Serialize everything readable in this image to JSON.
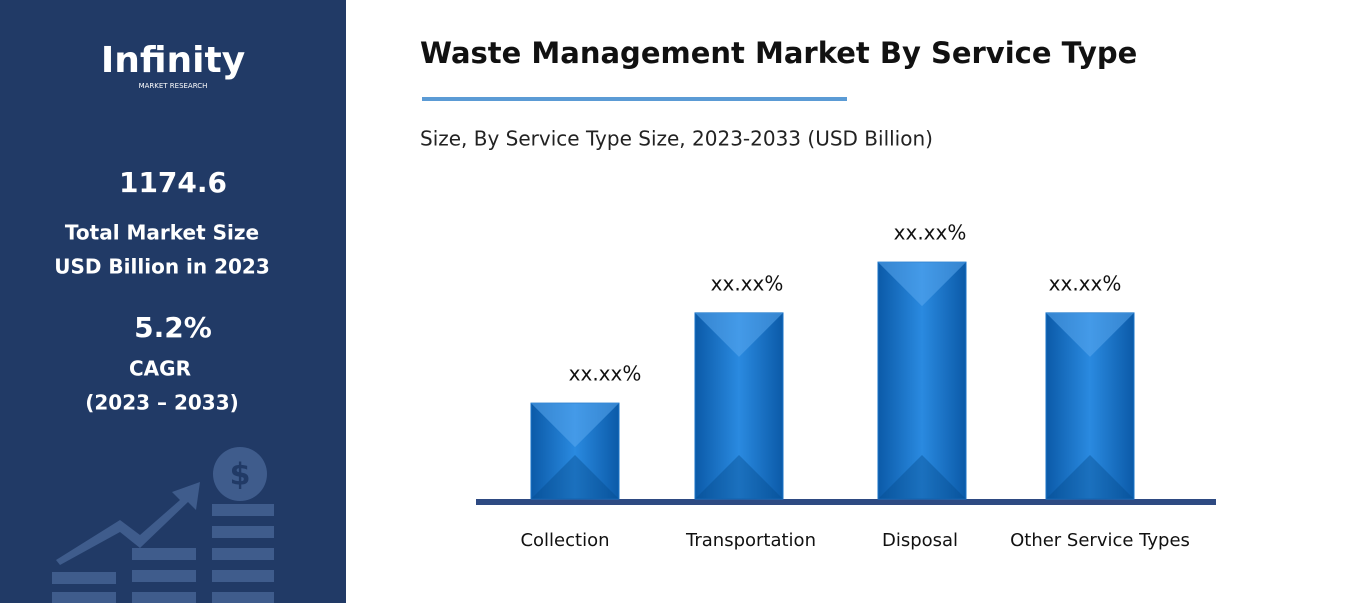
{
  "sidebar": {
    "logo": "Infinity",
    "logo_sub": "MARKET RESEARCH",
    "market_size": "1174.6",
    "market_size_label_1": "Total Market Size",
    "market_size_label_2": "USD Billion in 2023",
    "cagr": "5.2%",
    "cagr_label": "CAGR",
    "cagr_period": "(2023 – 2033)"
  },
  "chart_data": {
    "type": "bar",
    "title": "Waste Management Market By Service Type",
    "subtitle": "Size, By Service Type Size, 2023-2033 (USD Billion)",
    "categories": [
      "Collection",
      "Transportation",
      "Disposal",
      "Other Service Types"
    ],
    "values": [
      13.6,
      26.4,
      33.6,
      26.4
    ],
    "value_labels": [
      "xx.xx%",
      "xx.xx%",
      "xx.xx%",
      "xx.xx%"
    ],
    "color": "#1a73c7",
    "ylim": [
      0,
      40
    ]
  }
}
